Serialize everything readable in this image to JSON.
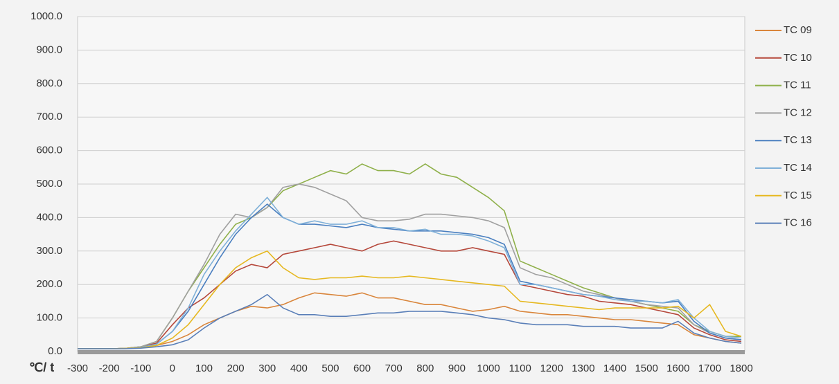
{
  "chart_data": {
    "type": "line",
    "x_label": "℃/ t",
    "x": [
      -300,
      -250,
      -200,
      -150,
      -100,
      -50,
      0,
      50,
      100,
      150,
      200,
      250,
      300,
      350,
      400,
      450,
      500,
      550,
      600,
      650,
      700,
      750,
      800,
      850,
      900,
      950,
      1000,
      1050,
      1100,
      1150,
      1200,
      1250,
      1300,
      1350,
      1400,
      1450,
      1500,
      1550,
      1600,
      1650,
      1700,
      1750,
      1800
    ],
    "xlim": [
      -300,
      1800
    ],
    "xticks": [
      -300,
      -200,
      -100,
      0,
      100,
      200,
      300,
      400,
      500,
      600,
      700,
      800,
      900,
      1000,
      1100,
      1200,
      1300,
      1400,
      1500,
      1600,
      1700,
      1800
    ],
    "ylim": [
      0,
      1000
    ],
    "yticks": [
      {
        "value": 0,
        "label": "0.0"
      },
      {
        "value": 100,
        "label": "100.0"
      },
      {
        "value": 200,
        "label": "200.0"
      },
      {
        "value": 300,
        "label": "300.0"
      },
      {
        "value": 400,
        "label": "400.0"
      },
      {
        "value": 500,
        "label": "500.0"
      },
      {
        "value": 600,
        "label": "600.0"
      },
      {
        "value": 700,
        "label": "700.0"
      },
      {
        "value": 800,
        "label": "800.0"
      },
      {
        "value": 900,
        "label": "900.0"
      },
      {
        "value": 1000,
        "label": "1000.0"
      }
    ],
    "grid": true,
    "legend": "right",
    "series": [
      {
        "name": "TC 09",
        "color": "#d9853b",
        "values": [
          8,
          8,
          8,
          9,
          12,
          18,
          30,
          50,
          80,
          100,
          120,
          135,
          130,
          140,
          160,
          175,
          170,
          165,
          175,
          160,
          160,
          150,
          140,
          140,
          130,
          120,
          125,
          135,
          120,
          115,
          110,
          110,
          105,
          100,
          95,
          95,
          90,
          85,
          80,
          50,
          40,
          30,
          25
        ]
      },
      {
        "name": "TC 10",
        "color": "#b5473a",
        "values": [
          8,
          8,
          8,
          9,
          14,
          25,
          80,
          130,
          160,
          200,
          240,
          260,
          250,
          290,
          300,
          310,
          320,
          310,
          300,
          320,
          330,
          320,
          310,
          300,
          300,
          310,
          300,
          290,
          200,
          190,
          180,
          170,
          165,
          150,
          145,
          140,
          130,
          120,
          110,
          70,
          50,
          35,
          30
        ]
      },
      {
        "name": "TC 11",
        "color": "#8fb04a",
        "values": [
          8,
          8,
          8,
          9,
          14,
          30,
          100,
          180,
          250,
          320,
          380,
          400,
          430,
          480,
          500,
          520,
          540,
          530,
          560,
          540,
          540,
          530,
          560,
          530,
          520,
          490,
          460,
          420,
          270,
          250,
          230,
          210,
          190,
          175,
          160,
          150,
          140,
          130,
          120,
          80,
          60,
          45,
          45
        ]
      },
      {
        "name": "TC 12",
        "color": "#a0a0a0",
        "values": [
          8,
          8,
          8,
          9,
          14,
          30,
          100,
          180,
          260,
          350,
          410,
          400,
          430,
          490,
          500,
          490,
          470,
          450,
          400,
          390,
          390,
          395,
          410,
          410,
          405,
          400,
          390,
          370,
          250,
          230,
          220,
          200,
          180,
          170,
          160,
          150,
          140,
          135,
          130,
          80,
          55,
          40,
          35
        ]
      },
      {
        "name": "TC 13",
        "color": "#4a7fc0",
        "values": [
          8,
          8,
          8,
          9,
          12,
          22,
          60,
          120,
          200,
          280,
          350,
          400,
          440,
          400,
          380,
          380,
          375,
          370,
          380,
          370,
          365,
          360,
          360,
          360,
          355,
          350,
          340,
          320,
          210,
          200,
          190,
          180,
          170,
          165,
          160,
          155,
          150,
          145,
          150,
          90,
          55,
          40,
          35
        ]
      },
      {
        "name": "TC 14",
        "color": "#7fb0d8",
        "values": [
          8,
          8,
          8,
          9,
          12,
          22,
          60,
          130,
          230,
          300,
          360,
          410,
          460,
          400,
          380,
          390,
          380,
          380,
          390,
          370,
          370,
          360,
          365,
          350,
          350,
          345,
          330,
          310,
          200,
          200,
          190,
          180,
          170,
          165,
          155,
          150,
          150,
          145,
          155,
          100,
          60,
          45,
          40
        ]
      },
      {
        "name": "TC 15",
        "color": "#e6b820",
        "values": [
          8,
          8,
          8,
          9,
          11,
          18,
          40,
          80,
          140,
          200,
          250,
          280,
          300,
          250,
          220,
          215,
          220,
          220,
          225,
          220,
          220,
          225,
          220,
          215,
          210,
          205,
          200,
          195,
          150,
          145,
          140,
          135,
          130,
          125,
          130,
          130,
          130,
          130,
          135,
          100,
          140,
          60,
          45
        ]
      },
      {
        "name": "TC 16",
        "color": "#5a7fb8",
        "values": [
          8,
          8,
          8,
          8,
          10,
          14,
          20,
          35,
          70,
          100,
          120,
          140,
          170,
          130,
          110,
          110,
          105,
          105,
          110,
          115,
          115,
          120,
          120,
          120,
          115,
          110,
          100,
          95,
          85,
          80,
          80,
          80,
          75,
          75,
          75,
          70,
          70,
          70,
          90,
          55,
          40,
          30,
          25
        ]
      }
    ]
  }
}
